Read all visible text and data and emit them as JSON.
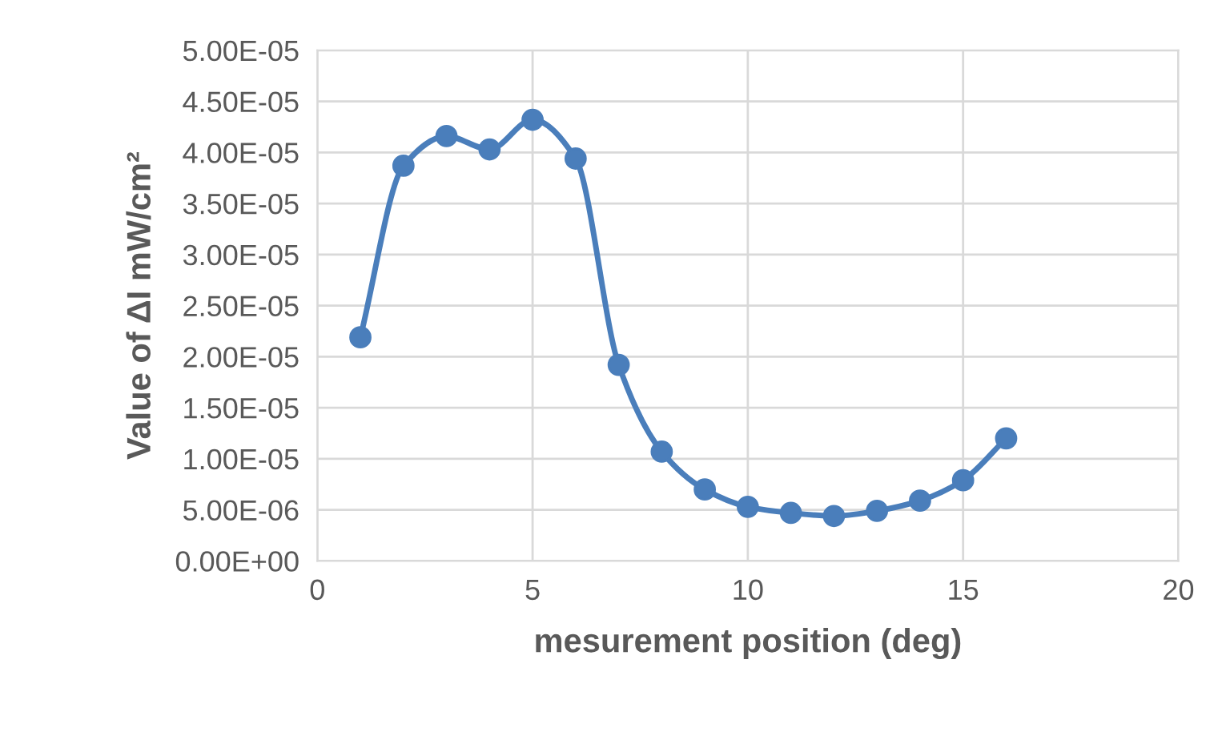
{
  "chart_data": {
    "type": "line",
    "xlabel": "mesurement position (deg)",
    "ylabel": "Value of ΔI mW/cm²",
    "x": [
      1,
      2,
      3,
      4,
      5,
      6,
      7,
      8,
      9,
      10,
      11,
      12,
      13,
      14,
      15,
      16
    ],
    "series": [
      {
        "color": "#4a7ebb",
        "values": [
          2.19e-05,
          3.87e-05,
          4.16e-05,
          4.03e-05,
          4.32e-05,
          3.94e-05,
          1.92e-05,
          1.07e-05,
          7e-06,
          5.3e-06,
          4.7e-06,
          4.4e-06,
          4.9e-06,
          5.9e-06,
          7.9e-06,
          1.2e-05
        ]
      }
    ],
    "xlim": [
      0,
      20
    ],
    "xticks": [
      0,
      5,
      10,
      15,
      20
    ],
    "ylim": [
      0,
      5e-05
    ],
    "yticks": [
      {
        "value": 0,
        "label": "0.00E+00"
      },
      {
        "value": 5e-06,
        "label": "5.00E-06"
      },
      {
        "value": 1e-05,
        "label": "1.00E-05"
      },
      {
        "value": 1.5e-05,
        "label": "1.50E-05"
      },
      {
        "value": 2e-05,
        "label": "2.00E-05"
      },
      {
        "value": 2.5e-05,
        "label": "2.50E-05"
      },
      {
        "value": 3e-05,
        "label": "3.00E-05"
      },
      {
        "value": 3.5e-05,
        "label": "3.50E-05"
      },
      {
        "value": 4e-05,
        "label": "4.00E-05"
      },
      {
        "value": 4.5e-05,
        "label": "4.50E-05"
      },
      {
        "value": 5e-05,
        "label": "5.00E-05"
      }
    ],
    "grid": true,
    "marker": "circle",
    "line_style": "solid",
    "legend": false
  }
}
